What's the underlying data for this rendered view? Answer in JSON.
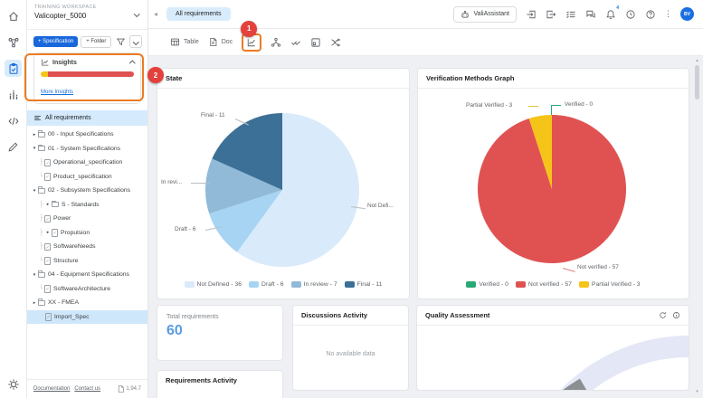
{
  "workspace": {
    "type_label": "TRAINING WORKSPACE",
    "name": "Valicopter_5000"
  },
  "left_panel": {
    "spec_button": "+ Specification",
    "folder_button": "+ Folder",
    "insights": {
      "title": "Insights",
      "more_link": "More Insights",
      "bar_segments": [
        {
          "color": "#f5c418",
          "pct": 8
        },
        {
          "color": "#e05252",
          "pct": 92
        }
      ]
    },
    "all_requirements": "All requirements",
    "tree": [
      {
        "label": "00 - Input Specifications",
        "kind": "folder",
        "arrow": "right",
        "indent": 0
      },
      {
        "label": "01 - System Specifications",
        "kind": "folder",
        "arrow": "down",
        "indent": 0
      },
      {
        "label": "Operational_specification",
        "kind": "doc",
        "arrow": "none",
        "indent": 1,
        "conn": "mid"
      },
      {
        "label": "Product_specification",
        "kind": "doc",
        "arrow": "none",
        "indent": 1,
        "conn": "end"
      },
      {
        "label": "02 - Subsystem Specifications",
        "kind": "folder",
        "arrow": "down",
        "indent": 0
      },
      {
        "label": "S - Standards",
        "kind": "folder",
        "arrow": "right",
        "indent": 1,
        "conn": "mid"
      },
      {
        "label": "Power",
        "kind": "doc",
        "arrow": "none",
        "indent": 1,
        "conn": "mid"
      },
      {
        "label": "Propulsion",
        "kind": "doc",
        "arrow": "right",
        "indent": 1,
        "conn": "mid"
      },
      {
        "label": "SoftwareNeeds",
        "kind": "doc",
        "arrow": "none",
        "indent": 1,
        "conn": "mid"
      },
      {
        "label": "Structure",
        "kind": "doc",
        "arrow": "none",
        "indent": 1,
        "conn": "end"
      },
      {
        "label": "04 - Equipment Specifications",
        "kind": "folder",
        "arrow": "down",
        "indent": 0
      },
      {
        "label": "SoftwareArchitecture",
        "kind": "doc",
        "arrow": "none",
        "indent": 1,
        "conn": "end"
      },
      {
        "label": "XX - FMEA",
        "kind": "folder",
        "arrow": "right",
        "indent": 0
      },
      {
        "label": "Import_Spec",
        "kind": "doc",
        "arrow": "none",
        "indent": 1,
        "selected": true
      }
    ],
    "footer": {
      "documentation": "Documentation",
      "contact": "Contact us",
      "version": "1.94.7"
    }
  },
  "topbar": {
    "tab": "All requirements",
    "assistant_label": "ValiAssistant",
    "notification_count": "4",
    "avatar_initials": "BV"
  },
  "toolbar": {
    "table_label": "Table",
    "doc_label": "Doc"
  },
  "cards": {
    "total": {
      "title": "Total requirements",
      "value": "60"
    },
    "discussions": {
      "title": "Discussions Activity",
      "empty_text": "No available data"
    },
    "quality": {
      "title": "Quality Assessment"
    },
    "requirements_activity": {
      "title": "Requirements Activity"
    }
  },
  "annotations": {
    "step1": "1",
    "step2": "2"
  },
  "chart_data": [
    {
      "type": "pie",
      "title": "State",
      "labels": [
        "Not Defined",
        "Draft",
        "In review",
        "Final"
      ],
      "values": [
        36,
        6,
        7,
        11
      ],
      "total": 60,
      "colors": [
        "#d9eafa",
        "#a7d4f3",
        "#91b9d8",
        "#3c7096"
      ],
      "legend": [
        "Not Defined - 36",
        "Draft - 6",
        "In review - 7",
        "Final - 11"
      ],
      "callouts": {
        "final": "Final - 11",
        "in_review": "In revi...",
        "draft": "Draft - 6",
        "not_defined": "Not Defi..."
      },
      "layout": {
        "start": "12 o'clock",
        "direction": "clockwise",
        "legend_position": "bottom"
      }
    },
    {
      "type": "pie",
      "title": "Verification Methods Graph",
      "labels": [
        "Verified",
        "Not verified",
        "Partial Verified"
      ],
      "values": [
        0,
        57,
        3
      ],
      "total": 60,
      "colors": [
        "#2aa876",
        "#e05252",
        "#f5c418"
      ],
      "legend": [
        "Verified - 0",
        "Not verified - 57",
        "Partial Verified - 3"
      ],
      "callouts": {
        "partial": "Partial Verified - 3",
        "verified": "Verified - 0",
        "not_verified": "Not verified - 57"
      },
      "layout": {
        "start": "12 o'clock",
        "direction": "clockwise",
        "legend_position": "bottom"
      }
    },
    {
      "type": "gauge",
      "title": "Quality Assessment",
      "note": "donut gauge partially visible, no value labels shown"
    }
  ]
}
